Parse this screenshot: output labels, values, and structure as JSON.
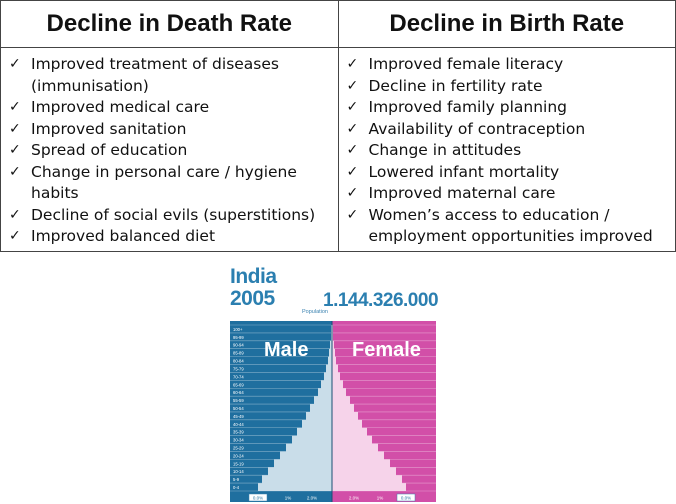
{
  "table": {
    "left_header": "Decline in Death Rate",
    "right_header": "Decline in Birth Rate",
    "check_glyph": "✓",
    "left_items": [
      "Improved treatment of diseases",
      "(immunisation)",
      "Improved medical care",
      "Improved sanitation",
      "Spread of education",
      "Change in personal care / hygiene habits",
      "Decline of social evils (superstitions)",
      "Improved balanced diet"
    ],
    "right_items": [
      "Improved female literacy",
      "Decline in fertility rate",
      "Improved family planning",
      "Availability of contraception",
      "Change in attitudes",
      "Lowered infant mortality",
      "Improved maternal care",
      "Women’s access to education /",
      "employment opportunities improved"
    ]
  },
  "pyramid": {
    "country": "India",
    "year": "2005",
    "population_label": "Population",
    "population_value": "1.144.326.000",
    "male_label": "Male",
    "female_label": "Female",
    "age_groups": [
      "100+",
      "95-99",
      "90-94",
      "85-89",
      "80-84",
      "75-79",
      "70-74",
      "65-69",
      "60-64",
      "55-59",
      "50-54",
      "45-49",
      "40-44",
      "35-39",
      "30-34",
      "25-29",
      "20-24",
      "15-19",
      "10-14",
      "5-9",
      "0-4"
    ],
    "axis_ticks": [
      "0.0%",
      "1%",
      "2.0%",
      "2.0%",
      "1%",
      "0.0%"
    ],
    "male_color": "#1f6f9f",
    "female_color": "#d24fa8"
  }
}
